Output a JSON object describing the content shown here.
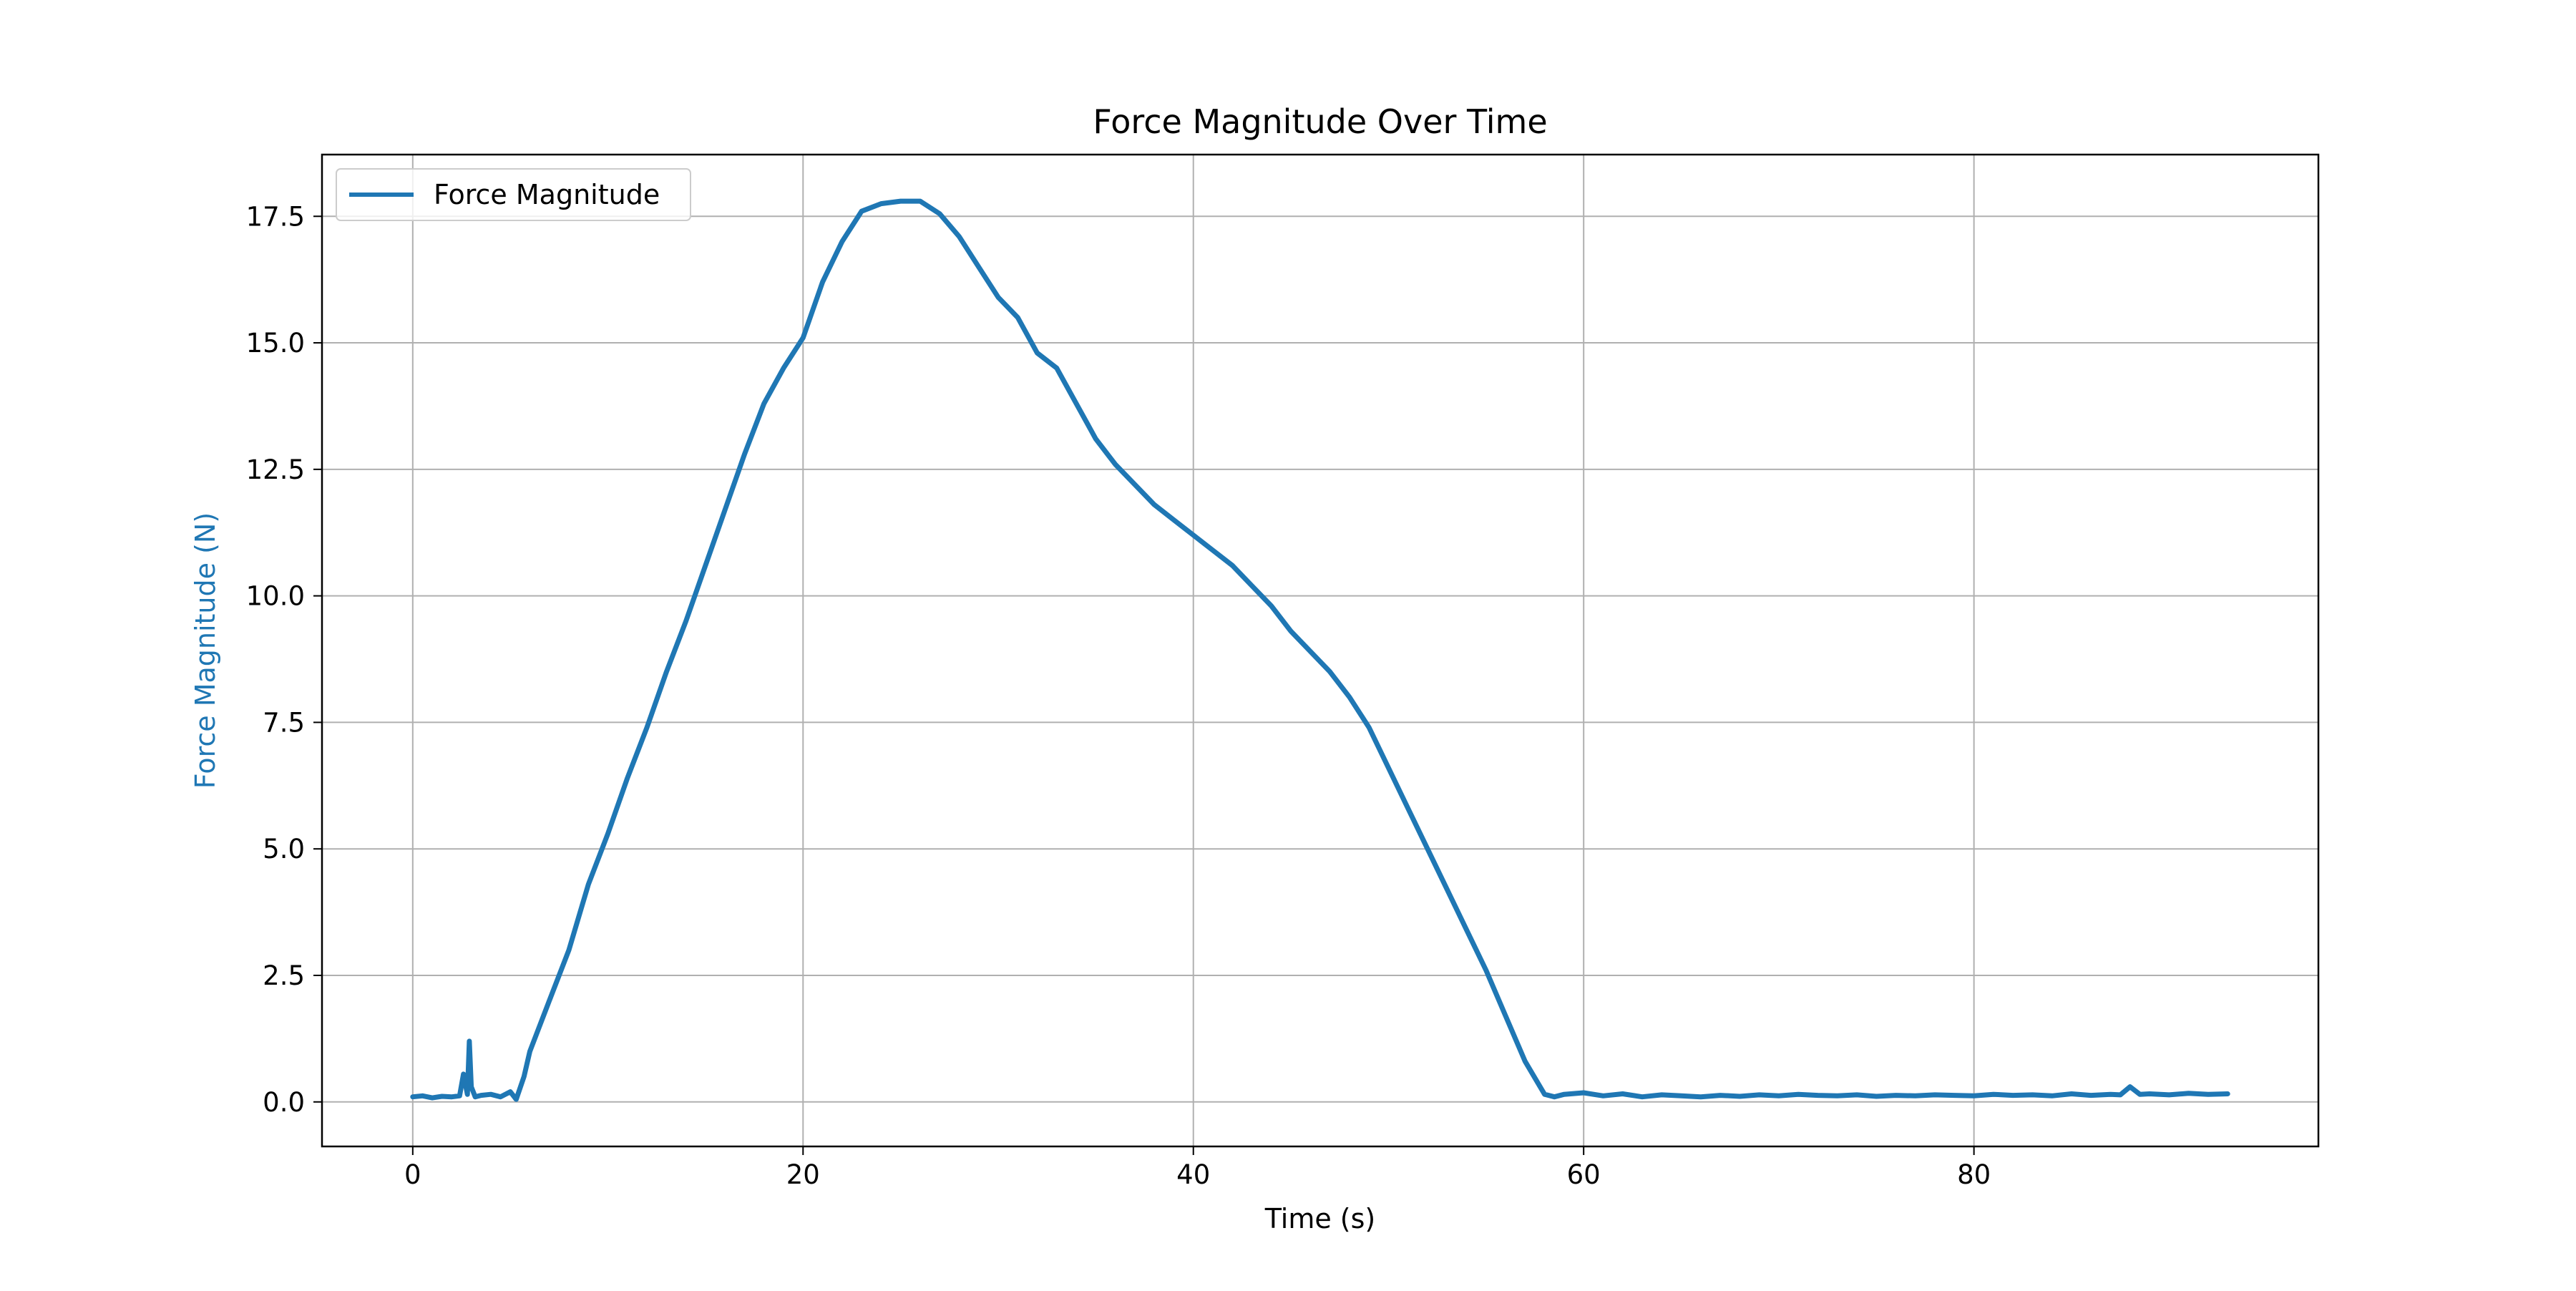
{
  "chart_data": {
    "type": "line",
    "title": "Force Magnitude Over Time",
    "xlabel": "Time (s)",
    "ylabel": "Force Magnitude (N)",
    "xlim": [
      -4.65,
      97.65
    ],
    "ylim": [
      -0.88,
      18.72
    ],
    "x_ticks": [
      0,
      20,
      40,
      60,
      80
    ],
    "x_tick_labels": [
      "0",
      "20",
      "40",
      "60",
      "80"
    ],
    "y_ticks": [
      0.0,
      2.5,
      5.0,
      7.5,
      10.0,
      12.5,
      15.0,
      17.5
    ],
    "y_tick_labels": [
      "0.0",
      "2.5",
      "5.0",
      "7.5",
      "10.0",
      "12.5",
      "15.0",
      "17.5"
    ],
    "grid": true,
    "legend_position": "top-left",
    "colors": {
      "series": "#1f77b4",
      "ylabel": "#1f77b4",
      "grid": "#b0b0b0",
      "axis": "#000000"
    },
    "series": [
      {
        "name": "Force Magnitude",
        "x": [
          0.0,
          0.5,
          1.0,
          1.5,
          2.0,
          2.4,
          2.6,
          2.8,
          2.9,
          3.0,
          3.2,
          3.5,
          4.0,
          4.5,
          5.0,
          5.3,
          5.7,
          6.0,
          7.0,
          8.0,
          9.0,
          10.0,
          11.0,
          12.0,
          13.0,
          14.0,
          15.0,
          16.0,
          17.0,
          18.0,
          19.0,
          20.0,
          21.0,
          22.0,
          23.0,
          24.0,
          25.0,
          26.0,
          27.0,
          28.0,
          29.0,
          30.0,
          31.0,
          32.0,
          33.0,
          34.0,
          35.0,
          36.0,
          37.0,
          38.0,
          39.0,
          40.0,
          41.0,
          42.0,
          43.0,
          44.0,
          45.0,
          46.0,
          47.0,
          48.0,
          49.0,
          50.0,
          51.0,
          52.0,
          53.0,
          54.0,
          55.0,
          56.0,
          57.0,
          58.0,
          58.5,
          59.0,
          60.0,
          61.0,
          62.0,
          63.0,
          64.0,
          65.0,
          66.0,
          67.0,
          68.0,
          69.0,
          70.0,
          71.0,
          72.0,
          73.0,
          74.0,
          75.0,
          76.0,
          77.0,
          78.0,
          79.0,
          80.0,
          81.0,
          82.0,
          83.0,
          84.0,
          85.0,
          86.0,
          87.0,
          87.5,
          88.0,
          88.5,
          89.0,
          90.0,
          91.0,
          92.0,
          93.0
        ],
        "y": [
          0.1,
          0.12,
          0.08,
          0.11,
          0.1,
          0.12,
          0.55,
          0.15,
          1.2,
          0.3,
          0.1,
          0.13,
          0.15,
          0.1,
          0.2,
          0.05,
          0.5,
          1.0,
          2.0,
          3.0,
          4.3,
          5.3,
          6.4,
          7.4,
          8.5,
          9.5,
          10.6,
          11.7,
          12.8,
          13.8,
          14.5,
          15.1,
          16.2,
          17.0,
          17.6,
          17.75,
          17.8,
          17.8,
          17.55,
          17.1,
          16.5,
          15.9,
          15.5,
          14.8,
          14.5,
          13.8,
          13.1,
          12.6,
          12.2,
          11.8,
          11.5,
          11.2,
          10.9,
          10.6,
          10.2,
          9.8,
          9.3,
          8.9,
          8.5,
          8.0,
          7.4,
          6.6,
          5.8,
          5.0,
          4.2,
          3.4,
          2.6,
          1.7,
          0.8,
          0.15,
          0.1,
          0.15,
          0.18,
          0.12,
          0.16,
          0.1,
          0.14,
          0.12,
          0.1,
          0.13,
          0.11,
          0.14,
          0.12,
          0.15,
          0.13,
          0.12,
          0.14,
          0.11,
          0.13,
          0.12,
          0.14,
          0.13,
          0.12,
          0.15,
          0.13,
          0.14,
          0.12,
          0.16,
          0.13,
          0.15,
          0.14,
          0.3,
          0.15,
          0.16,
          0.14,
          0.17,
          0.15,
          0.16
        ]
      }
    ]
  }
}
